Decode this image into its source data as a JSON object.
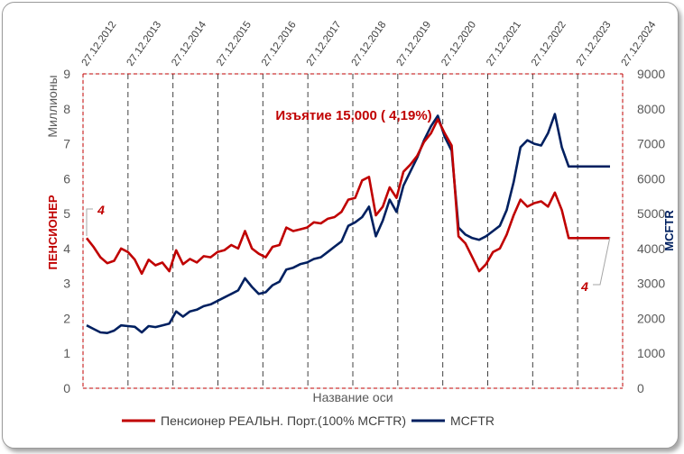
{
  "chart_data": {
    "type": "line",
    "annotation": "Изъятие 15,000 ( 4,19%)",
    "y_left_unit": "Миллионы",
    "ylabel_left": "ПЕНСИОНЕР",
    "ylabel_right": "MCFTR",
    "xlabel": "Название оси",
    "ylim_left": [
      0,
      9
    ],
    "ylim_right": [
      0,
      9000
    ],
    "y_left_ticks": [
      "0",
      "1",
      "2",
      "3",
      "4",
      "5",
      "6",
      "7",
      "8",
      "9"
    ],
    "y_right_ticks": [
      "0",
      "1000",
      "2000",
      "3000",
      "4000",
      "5000",
      "6000",
      "7000",
      "8000",
      "9000"
    ],
    "x_date_ticks": [
      "27.12.2012",
      "27.12.2013",
      "27.12.2014",
      "27.12.2015",
      "27.12.2016",
      "27.12.2017",
      "27.12.2018",
      "27.12.2019",
      "27.12.2020",
      "27.12.2021",
      "27.12.2022",
      "27.12.2023",
      "27.12.2024"
    ],
    "start_label": "4",
    "end_label": "4",
    "colors": {
      "pensioner": "#c00000",
      "mcftr": "#002060",
      "grid": "#404040"
    },
    "series": [
      {
        "name": "Пенсионер РЕАЛЬН. Порт.(100% MCFTR)",
        "axis": "left",
        "x": [
          "2012-02",
          "2012-04",
          "2012-06",
          "2012-08",
          "2012-10",
          "2012-12",
          "2013-02",
          "2013-04",
          "2013-06",
          "2013-08",
          "2013-10",
          "2013-12",
          "2014-02",
          "2014-04",
          "2014-06",
          "2014-08",
          "2014-10",
          "2014-12",
          "2015-02",
          "2015-04",
          "2015-06",
          "2015-08",
          "2015-10",
          "2015-12",
          "2016-02",
          "2016-04",
          "2016-06",
          "2016-08",
          "2016-10",
          "2016-12",
          "2017-02",
          "2017-04",
          "2017-06",
          "2017-08",
          "2017-10",
          "2017-12",
          "2018-02",
          "2018-04",
          "2018-06",
          "2018-08",
          "2018-10",
          "2018-12",
          "2019-02",
          "2019-04",
          "2019-06",
          "2019-08",
          "2019-10",
          "2019-12",
          "2020-02",
          "2020-04",
          "2020-06",
          "2020-08",
          "2020-10",
          "2020-12",
          "2021-02",
          "2021-04",
          "2021-06",
          "2021-08",
          "2021-10",
          "2021-12",
          "2022-02",
          "2022-04",
          "2022-06",
          "2022-08",
          "2022-10",
          "2022-12",
          "2023-02",
          "2023-04",
          "2023-06",
          "2023-08",
          "2023-10",
          "2023-12",
          "2024-02",
          "2024-04",
          "2024-06",
          "2024-08",
          "2024-10"
        ],
        "values": [
          4.3,
          4.05,
          3.75,
          3.58,
          3.65,
          4.0,
          3.9,
          3.68,
          3.28,
          3.68,
          3.52,
          3.6,
          3.35,
          3.95,
          3.55,
          3.7,
          3.6,
          3.78,
          3.75,
          3.9,
          3.95,
          4.1,
          4.0,
          4.5,
          4.0,
          3.85,
          3.75,
          4.05,
          4.1,
          4.6,
          4.5,
          4.55,
          4.6,
          4.75,
          4.72,
          4.85,
          4.9,
          5.05,
          5.4,
          5.45,
          5.95,
          6.05,
          4.95,
          5.2,
          5.75,
          5.45,
          6.2,
          6.4,
          6.65,
          7.05,
          7.3,
          7.7,
          7.3,
          6.95,
          4.35,
          4.15,
          3.75,
          3.35,
          3.55,
          3.9,
          4.0,
          4.4,
          4.95,
          5.4,
          5.2,
          5.3,
          5.35,
          5.2,
          5.6,
          5.1,
          4.3,
          4.3,
          4.3,
          4.3,
          4.3,
          4.3,
          4.3
        ]
      },
      {
        "name": "MCFTR",
        "axis": "right",
        "x": [
          "2012-02",
          "2012-04",
          "2012-06",
          "2012-08",
          "2012-10",
          "2012-12",
          "2013-02",
          "2013-04",
          "2013-06",
          "2013-08",
          "2013-10",
          "2013-12",
          "2014-02",
          "2014-04",
          "2014-06",
          "2014-08",
          "2014-10",
          "2014-12",
          "2015-02",
          "2015-04",
          "2015-06",
          "2015-08",
          "2015-10",
          "2015-12",
          "2016-02",
          "2016-04",
          "2016-06",
          "2016-08",
          "2016-10",
          "2016-12",
          "2017-02",
          "2017-04",
          "2017-06",
          "2017-08",
          "2017-10",
          "2017-12",
          "2018-02",
          "2018-04",
          "2018-06",
          "2018-08",
          "2018-10",
          "2018-12",
          "2019-02",
          "2019-04",
          "2019-06",
          "2019-08",
          "2019-10",
          "2019-12",
          "2020-02",
          "2020-04",
          "2020-06",
          "2020-08",
          "2020-10",
          "2020-12",
          "2021-02",
          "2021-04",
          "2021-06",
          "2021-08",
          "2021-10",
          "2021-12",
          "2022-02",
          "2022-04",
          "2022-06",
          "2022-08",
          "2022-10",
          "2022-12",
          "2023-02",
          "2023-04",
          "2023-06",
          "2023-08",
          "2023-10",
          "2023-12",
          "2024-02",
          "2024-04",
          "2024-06",
          "2024-08",
          "2024-10"
        ],
        "values": [
          1800,
          1700,
          1600,
          1580,
          1650,
          1800,
          1780,
          1760,
          1600,
          1780,
          1750,
          1800,
          1850,
          2200,
          2050,
          2200,
          2250,
          2350,
          2400,
          2500,
          2600,
          2700,
          2800,
          3150,
          2900,
          2700,
          2750,
          2950,
          3050,
          3400,
          3450,
          3550,
          3600,
          3700,
          3750,
          3900,
          4050,
          4200,
          4650,
          4750,
          4900,
          5200,
          4350,
          4800,
          5400,
          5050,
          5800,
          6200,
          6600,
          7100,
          7500,
          7800,
          7200,
          6800,
          4600,
          4400,
          4300,
          4250,
          4350,
          4500,
          4650,
          5100,
          5900,
          6900,
          7100,
          7000,
          6950,
          7300,
          7850,
          6900,
          6350,
          6350,
          6350,
          6350,
          6350,
          6350,
          6350
        ]
      }
    ],
    "legend": "bottom"
  }
}
